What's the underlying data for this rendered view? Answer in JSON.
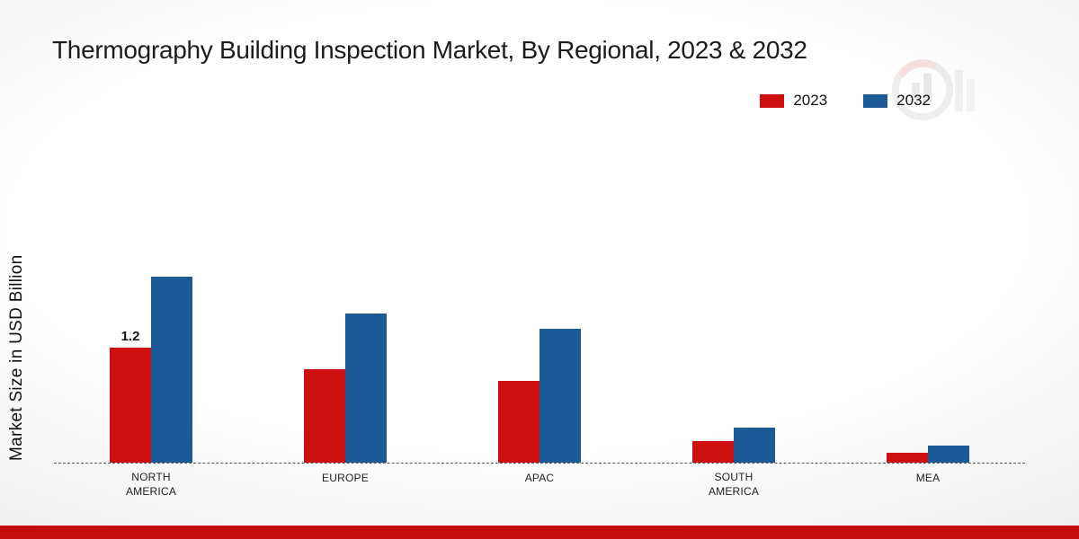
{
  "chart_data": {
    "type": "bar",
    "title": "Thermography Building Inspection Market, By Regional, 2023 & 2032",
    "xlabel": "",
    "ylabel": "Market Size in USD Billion",
    "categories": [
      "NORTH AMERICA",
      "EUROPE",
      "APAC",
      "SOUTH AMERICA",
      "MEA"
    ],
    "series": [
      {
        "name": "2023",
        "color": "#cc0f0f",
        "values": [
          1.2,
          0.97,
          0.85,
          0.22,
          0.1
        ],
        "labels": [
          "1.2",
          "",
          "",
          "",
          ""
        ]
      },
      {
        "name": "2032",
        "color": "#1b5a96",
        "values": [
          1.93,
          1.55,
          1.39,
          0.36,
          0.18
        ],
        "labels": [
          "",
          "",
          "",
          "",
          ""
        ]
      }
    ],
    "ylim": [
      0,
      2.2
    ],
    "grid": false,
    "legend_position": "top-right",
    "baseline_style": "dashed"
  },
  "footer": {
    "bar_color": "#c40d0d"
  },
  "watermark": {
    "name": "brand-logo-watermark"
  }
}
